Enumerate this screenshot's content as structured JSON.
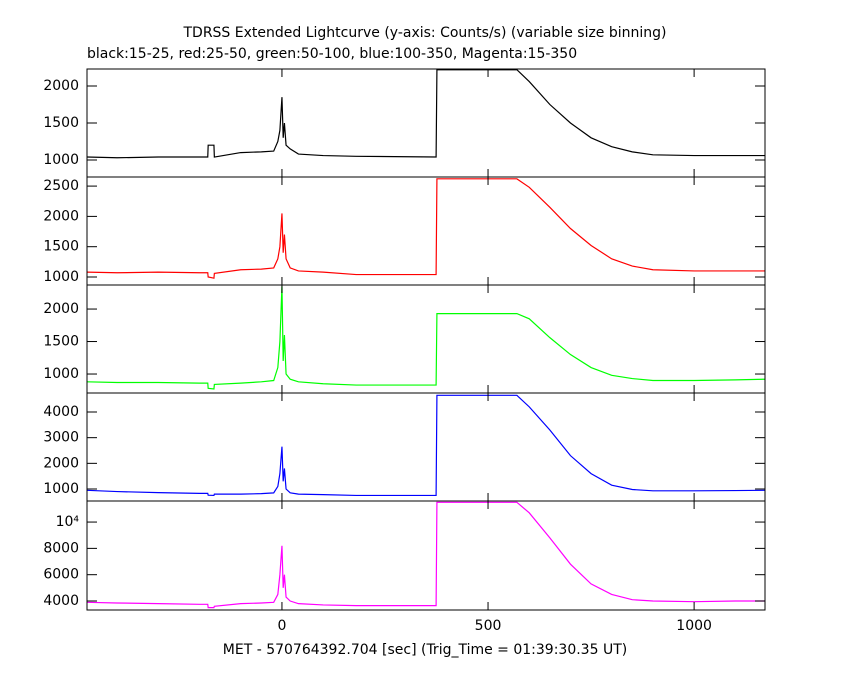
{
  "chart_data": [
    {
      "type": "line",
      "title": "TDRSS Extended Lightcurve (y-axis: Counts/s) (variable size binning)",
      "subtitle": "black:15-25, red:25-50, green:50-100, blue:100-350, Magenta:15-350",
      "xlim": [
        -473,
        1172
      ],
      "xticks": [
        0,
        500,
        1000
      ],
      "ylim": [
        770,
        2230
      ],
      "yticks": [
        1000,
        1500,
        2000
      ],
      "series": [
        {
          "color": "#000000",
          "x": [
            -473,
            -400,
            -300,
            -200,
            -180,
            -179,
            -165,
            -164,
            -100,
            -50,
            -20,
            -10,
            -5,
            0,
            3,
            6,
            10,
            20,
            40,
            100,
            180,
            374,
            376,
            570,
            600,
            650,
            700,
            750,
            800,
            850,
            900,
            1000,
            1100,
            1172
          ],
          "values": [
            1040,
            1030,
            1040,
            1040,
            1040,
            1200,
            1200,
            1040,
            1100,
            1110,
            1120,
            1250,
            1400,
            1850,
            1300,
            1500,
            1200,
            1150,
            1080,
            1060,
            1050,
            1040,
            2220,
            2220,
            2060,
            1750,
            1500,
            1300,
            1180,
            1110,
            1070,
            1060,
            1060,
            1060
          ]
        }
      ]
    },
    {
      "type": "line",
      "xlim": [
        -473,
        1172
      ],
      "xticks": [
        0,
        500,
        1000
      ],
      "ylim": [
        868,
        2650
      ],
      "yticks": [
        1000,
        1500,
        2000,
        2500
      ],
      "series": [
        {
          "color": "#ff0000",
          "x": [
            -473,
            -400,
            -300,
            -200,
            -180,
            -179,
            -165,
            -164,
            -100,
            -50,
            -20,
            -10,
            -5,
            0,
            3,
            6,
            10,
            20,
            40,
            100,
            180,
            374,
            376,
            570,
            600,
            650,
            700,
            750,
            800,
            850,
            900,
            1000,
            1100,
            1172
          ],
          "values": [
            1080,
            1070,
            1080,
            1070,
            1070,
            1000,
            980,
            1060,
            1120,
            1130,
            1150,
            1300,
            1500,
            2050,
            1400,
            1700,
            1300,
            1150,
            1100,
            1080,
            1040,
            1040,
            2620,
            2620,
            2480,
            2150,
            1800,
            1520,
            1300,
            1180,
            1120,
            1100,
            1100,
            1100
          ]
        }
      ]
    },
    {
      "type": "line",
      "xlim": [
        -473,
        1172
      ],
      "xticks": [
        0,
        500,
        1000
      ],
      "ylim": [
        708,
        2370
      ],
      "yticks": [
        1000,
        1500,
        2000
      ],
      "series": [
        {
          "color": "#00ff00",
          "x": [
            -473,
            -400,
            -300,
            -200,
            -180,
            -179,
            -165,
            -164,
            -100,
            -50,
            -20,
            -10,
            -5,
            0,
            3,
            6,
            10,
            20,
            40,
            100,
            180,
            374,
            376,
            570,
            600,
            650,
            700,
            750,
            800,
            850,
            900,
            1000,
            1100,
            1172
          ],
          "values": [
            880,
            870,
            870,
            860,
            860,
            780,
            770,
            840,
            860,
            880,
            900,
            1100,
            1500,
            2350,
            1200,
            1600,
            1000,
            920,
            880,
            850,
            830,
            830,
            1930,
            1930,
            1850,
            1560,
            1300,
            1100,
            980,
            930,
            900,
            900,
            910,
            920
          ]
        }
      ]
    },
    {
      "type": "line",
      "xlim": [
        -473,
        1172
      ],
      "xticks": [
        0,
        500,
        1000
      ],
      "ylim": [
        533,
        4740
      ],
      "yticks": [
        1000,
        2000,
        3000,
        4000
      ],
      "series": [
        {
          "color": "#0000ff",
          "x": [
            -473,
            -400,
            -300,
            -200,
            -180,
            -179,
            -165,
            -164,
            -100,
            -50,
            -20,
            -10,
            -5,
            0,
            3,
            6,
            10,
            20,
            40,
            100,
            180,
            374,
            376,
            570,
            600,
            650,
            700,
            750,
            800,
            850,
            900,
            1000,
            1100,
            1172
          ],
          "values": [
            950,
            900,
            860,
            830,
            830,
            760,
            750,
            800,
            800,
            820,
            850,
            1100,
            1600,
            2650,
            1300,
            1800,
            1000,
            850,
            800,
            780,
            750,
            750,
            4650,
            4650,
            4200,
            3300,
            2300,
            1600,
            1150,
            980,
            930,
            930,
            940,
            950
          ]
        }
      ]
    },
    {
      "type": "line",
      "xlabel": "MET - 570764392.704 [sec] (Trig_Time = 01:39:30.35 UT)",
      "xlim": [
        -473,
        1172
      ],
      "xticks": [
        0,
        500,
        1000
      ],
      "ylim": [
        3317,
        11600
      ],
      "yticks": [
        4000,
        6000,
        8000,
        {
          "value": 10000,
          "label": "10⁴"
        }
      ],
      "series": [
        {
          "color": "#ff00ff",
          "x": [
            -473,
            -400,
            -300,
            -200,
            -180,
            -179,
            -165,
            -164,
            -100,
            -50,
            -20,
            -10,
            -5,
            0,
            3,
            6,
            10,
            20,
            40,
            100,
            180,
            374,
            376,
            570,
            600,
            650,
            700,
            750,
            800,
            850,
            900,
            1000,
            1100,
            1172
          ],
          "values": [
            3900,
            3850,
            3800,
            3750,
            3750,
            3500,
            3500,
            3600,
            3800,
            3850,
            3900,
            4500,
            6000,
            8200,
            5000,
            6000,
            4300,
            4000,
            3800,
            3700,
            3650,
            3650,
            11500,
            11500,
            10700,
            8800,
            6800,
            5300,
            4500,
            4100,
            4000,
            3950,
            4000,
            4000
          ]
        }
      ]
    }
  ]
}
